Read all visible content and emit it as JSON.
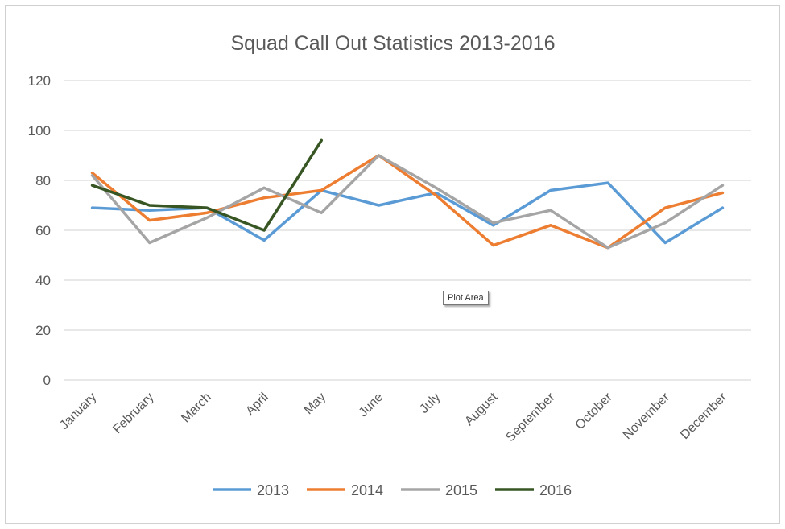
{
  "chart_data": {
    "type": "line",
    "title": "Squad Call Out Statistics 2013-2016",
    "xlabel": "",
    "ylabel": "",
    "ylim": [
      0,
      120
    ],
    "yticks": [
      0,
      20,
      40,
      60,
      80,
      100,
      120
    ],
    "grid": true,
    "legend_position": "bottom",
    "categories": [
      "January",
      "February",
      "March",
      "April",
      "May",
      "June",
      "July",
      "August",
      "September",
      "October",
      "November",
      "December"
    ],
    "series": [
      {
        "name": "2013",
        "color": "#5b9bd5",
        "values": [
          69,
          68,
          69,
          56,
          76,
          70,
          75,
          62,
          76,
          79,
          55,
          69
        ]
      },
      {
        "name": "2014",
        "color": "#ed7d31",
        "values": [
          83,
          64,
          67,
          73,
          76,
          90,
          74,
          54,
          62,
          53,
          69,
          75
        ]
      },
      {
        "name": "2015",
        "color": "#a5a5a5",
        "values": [
          82,
          55,
          65,
          77,
          67,
          90,
          77,
          63,
          68,
          53,
          63,
          78
        ]
      },
      {
        "name": "2016",
        "color": "#375623",
        "values": [
          78,
          70,
          69,
          60,
          96,
          null,
          null,
          null,
          null,
          null,
          null,
          null
        ]
      }
    ]
  },
  "tooltip": "Plot Area"
}
